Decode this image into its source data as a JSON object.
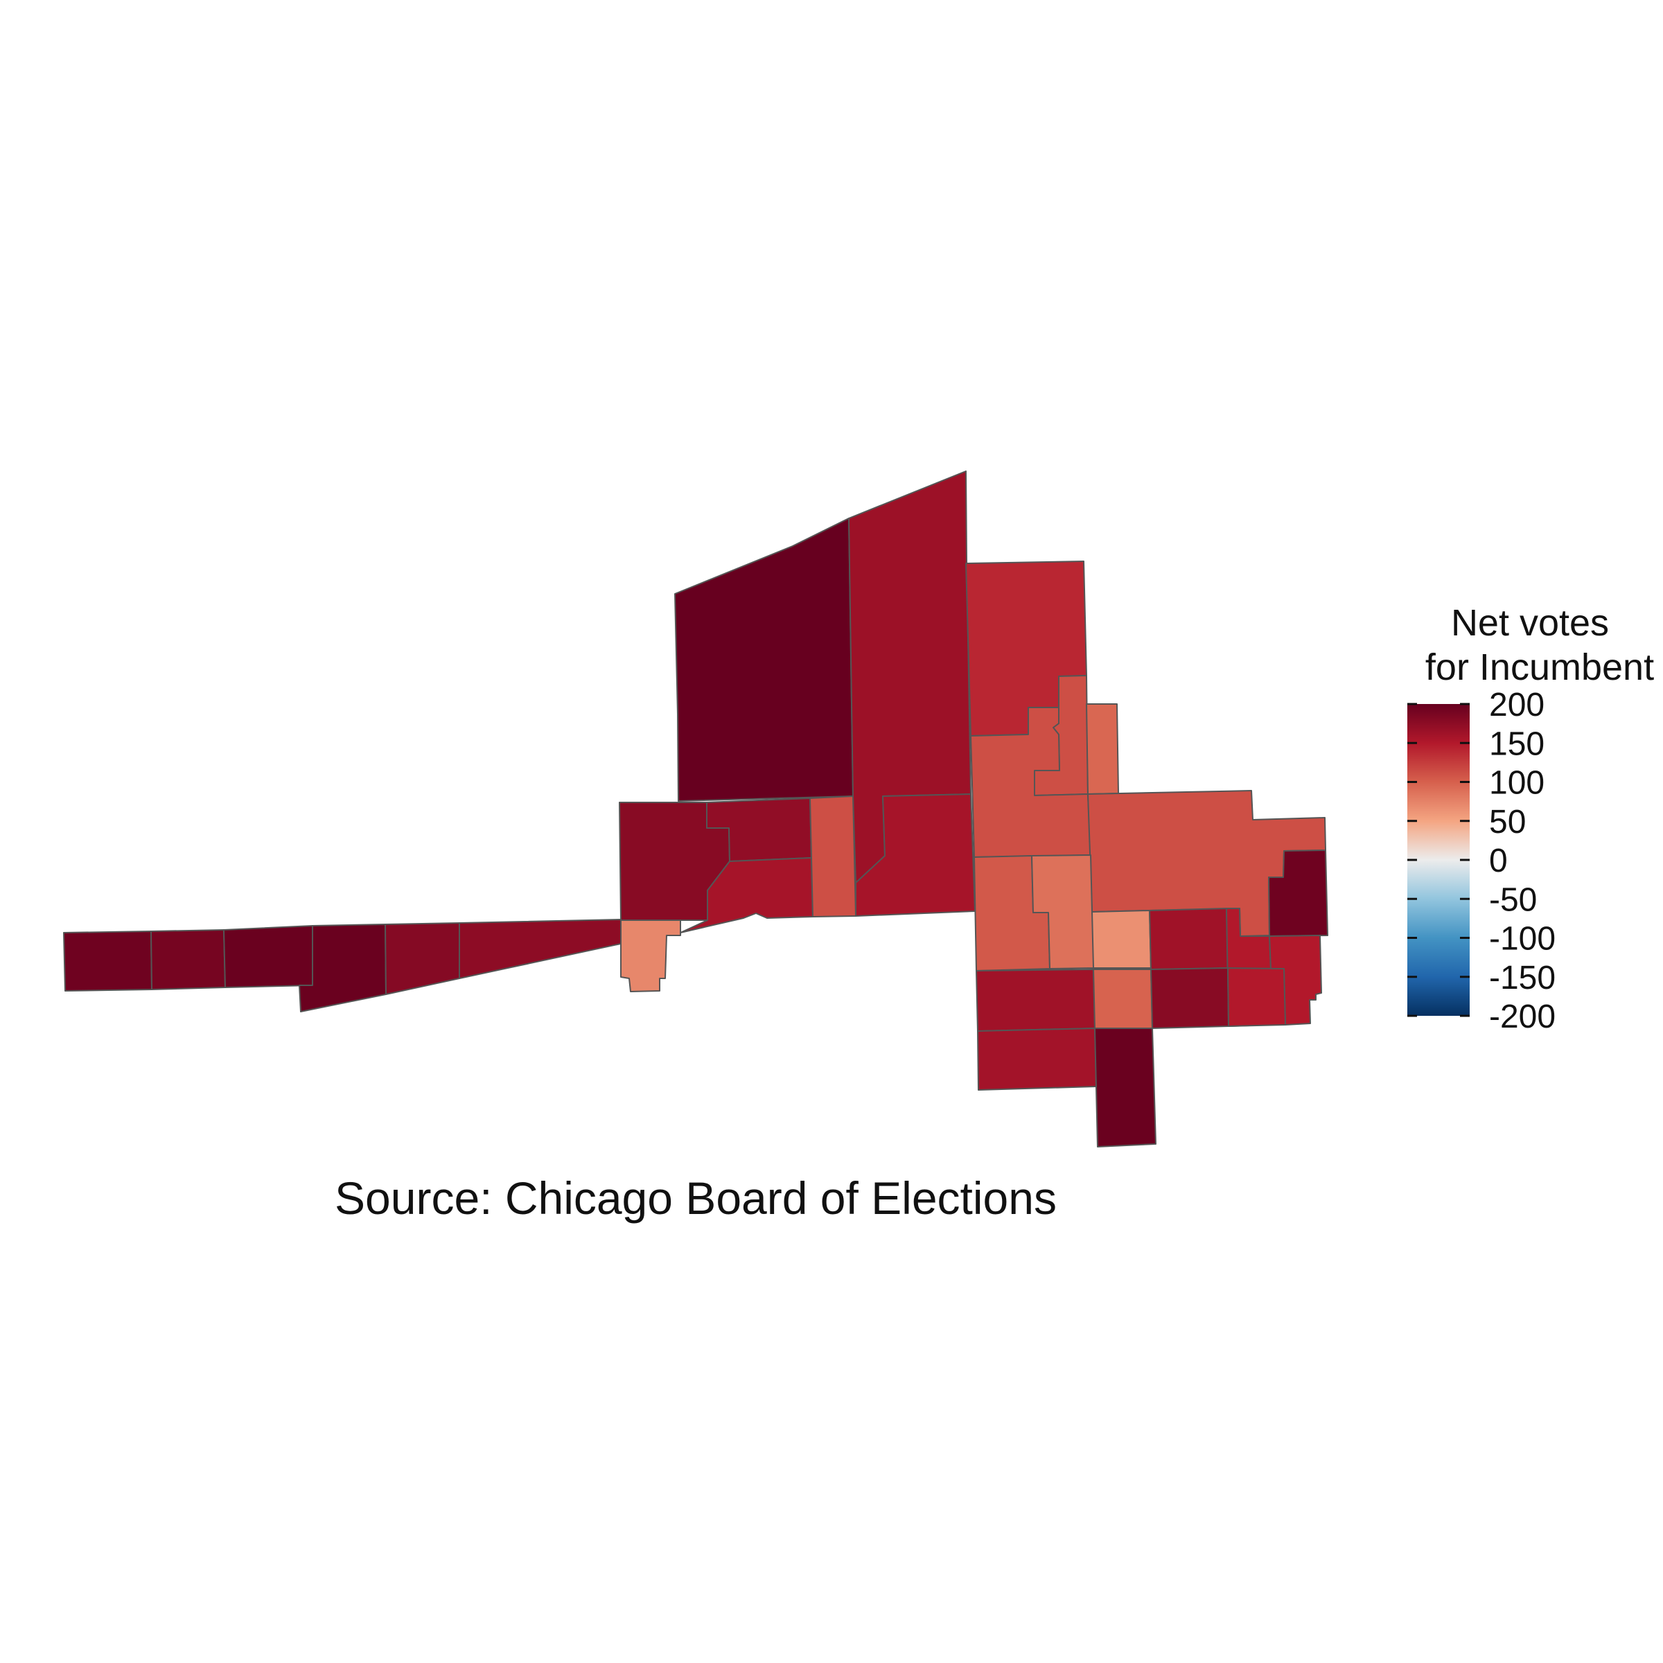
{
  "legend": {
    "title_line1": "Net votes",
    "title_line2": "for Incumbent",
    "min": -200,
    "max": 200,
    "ticks": [
      200,
      150,
      100,
      50,
      0,
      -50,
      -100,
      -150,
      -200
    ],
    "tick_labels": [
      "200",
      "150",
      "100",
      "50",
      "0",
      "-50",
      "-100",
      "-150",
      "-200"
    ],
    "color_stops": [
      {
        "value": -200,
        "color": "#053061"
      },
      {
        "value": -150,
        "color": "#2166ac"
      },
      {
        "value": -100,
        "color": "#4393c3"
      },
      {
        "value": -50,
        "color": "#92c5de"
      },
      {
        "value": 0,
        "color": "#ececec"
      },
      {
        "value": 50,
        "color": "#f4a582"
      },
      {
        "value": 100,
        "color": "#d6604d"
      },
      {
        "value": 150,
        "color": "#b2182b"
      },
      {
        "value": 200,
        "color": "#67001f"
      }
    ]
  },
  "caption": "Source: Chicago Board of Elections",
  "border_color": "#555555",
  "precincts": [
    {
      "id": "west-strip-1",
      "value": 195
    },
    {
      "id": "west-strip-2",
      "value": 190
    },
    {
      "id": "west-strip-3",
      "value": 198
    },
    {
      "id": "west-strip-4",
      "value": 198
    },
    {
      "id": "west-strip-5",
      "value": 180
    },
    {
      "id": "west-strip-6",
      "value": 175
    },
    {
      "id": "north-large-west",
      "value": 200
    },
    {
      "id": "north-large-east",
      "value": 165
    },
    {
      "id": "mid-west-block",
      "value": 178
    },
    {
      "id": "mid-upper-block",
      "value": 172
    },
    {
      "id": "mid-lower-block",
      "value": 158
    },
    {
      "id": "mid-narrow",
      "value": 112
    },
    {
      "id": "mid-east-block",
      "value": 158
    },
    {
      "id": "small-south-block",
      "value": 72
    },
    {
      "id": "northeast-top",
      "value": 140
    },
    {
      "id": "northeast-notch",
      "value": 112
    },
    {
      "id": "northeast-strip",
      "value": 95
    },
    {
      "id": "center-large",
      "value": 112
    },
    {
      "id": "east-large",
      "value": 112
    },
    {
      "id": "far-east-upper",
      "value": 195
    },
    {
      "id": "center-south-left",
      "value": 105
    },
    {
      "id": "center-south-mid",
      "value": 88
    },
    {
      "id": "center-light",
      "value": 65
    },
    {
      "id": "east-red-upper",
      "value": 162
    },
    {
      "id": "east-far-right",
      "value": 150
    },
    {
      "id": "south-left-1",
      "value": 162
    },
    {
      "id": "south-mid-small",
      "value": 98
    },
    {
      "id": "east-lower-dark",
      "value": 178
    },
    {
      "id": "east-lower-right",
      "value": 150
    },
    {
      "id": "south-left-2",
      "value": 160
    },
    {
      "id": "south-tail",
      "value": 198
    }
  ]
}
